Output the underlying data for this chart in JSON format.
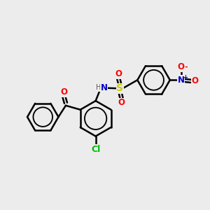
{
  "background_color": "#ececec",
  "bond_color": "#000000",
  "bond_width": 1.8,
  "atom_colors": {
    "O": "#ff0000",
    "N_amine": "#0000cc",
    "N_nitro": "#0000cc",
    "S": "#cccc00",
    "Cl": "#00bb00",
    "C": "#000000",
    "H": "#555555"
  },
  "font_size": 8,
  "figsize": [
    3.0,
    3.0
  ],
  "dpi": 100
}
